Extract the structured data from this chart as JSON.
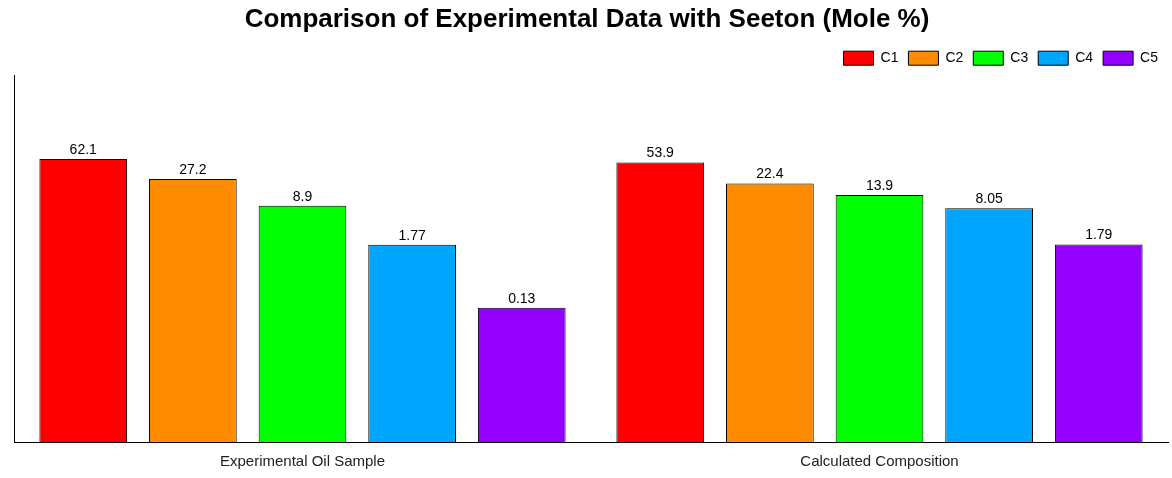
{
  "chart_data": {
    "type": "bar",
    "title": "Comparison of Experimental Data with Seeton (Mole %)",
    "categories": [
      "Experimental Oil Sample",
      "Calculated Composition"
    ],
    "series": [
      {
        "name": "C1",
        "color": "#ff0000",
        "values": [
          62.1,
          53.9
        ]
      },
      {
        "name": "C2",
        "color": "#ff8c00",
        "values": [
          27.2,
          22.4
        ]
      },
      {
        "name": "C3",
        "color": "#00ff00",
        "values": [
          8.9,
          13.9
        ]
      },
      {
        "name": "C4",
        "color": "#00a5ff",
        "values": [
          1.77,
          8.05
        ]
      },
      {
        "name": "C5",
        "color": "#9400ff",
        "values": [
          0.13,
          1.79
        ]
      }
    ],
    "log": "y",
    "ylim": [
      0.0005,
      2000
    ],
    "tick_labels": "x",
    "data_labels": true,
    "legend": "top right",
    "grid": false
  }
}
